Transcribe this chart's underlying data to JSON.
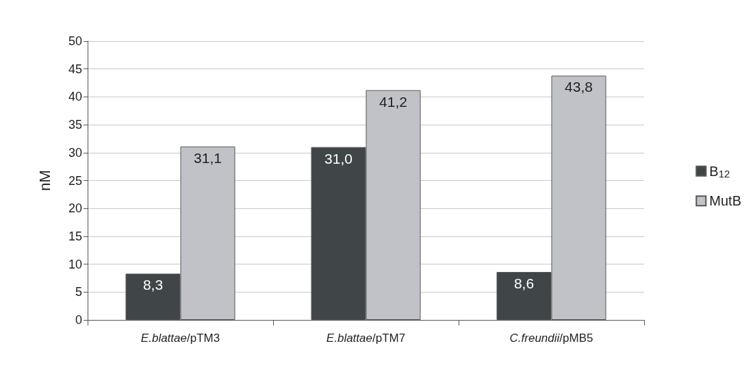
{
  "chart_data": {
    "type": "bar",
    "ylabel": "nM",
    "categories": [
      "E.blattae/pTM3",
      "E.blattae/pTM7",
      "C.freundii/pMB5"
    ],
    "series": [
      {
        "name": "B$_{12}$",
        "color": "#404648",
        "values": [
          8.3,
          31.0,
          8.6
        ],
        "value_labels": [
          "8,3",
          "31,0",
          "8,6"
        ]
      },
      {
        "name": "MutB",
        "color": "#c0c2c8",
        "values": [
          31.1,
          41.2,
          43.8
        ],
        "value_labels": [
          "31,1",
          "41,2",
          "43,8"
        ]
      }
    ],
    "ylim": [
      0,
      50
    ],
    "yticks": [
      0,
      5,
      10,
      15,
      20,
      25,
      30,
      35,
      40,
      45,
      50
    ],
    "grid": "y",
    "legend": "right"
  }
}
